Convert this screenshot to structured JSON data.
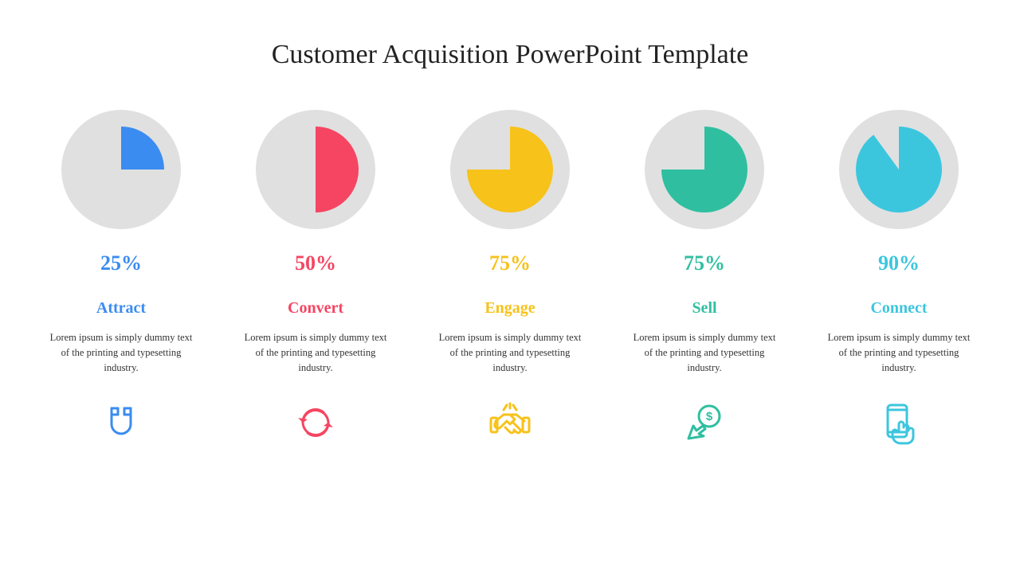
{
  "title": "Customer Acquisition PowerPoint Template",
  "title_fontsize": 34,
  "title_color": "#222222",
  "background_color": "#ffffff",
  "pie_bg_color": "#e0e0e0",
  "pie_outer_radius": 75,
  "pie_inner_radius": 54,
  "columns": [
    {
      "percent": 25,
      "percent_label": "25%",
      "label": "Attract",
      "description": "Lorem ipsum is simply dummy text of the printing and typesetting industry.",
      "color": "#3a8cf0",
      "icon": "magnet"
    },
    {
      "percent": 50,
      "percent_label": "50%",
      "label": "Convert",
      "description": "Lorem ipsum is simply dummy text of the printing and typesetting industry.",
      "color": "#f54562",
      "icon": "cycle"
    },
    {
      "percent": 75,
      "percent_label": "75%",
      "label": "Engage",
      "description": "Lorem ipsum is simply dummy text of the printing and typesetting industry.",
      "color": "#f7c21a",
      "icon": "handshake"
    },
    {
      "percent": 75,
      "percent_label": "75%",
      "label": "Sell",
      "description": "Lorem ipsum is simply dummy text of the printing and typesetting industry.",
      "color": "#2fbfa0",
      "icon": "dollar-cursor"
    },
    {
      "percent": 90,
      "percent_label": "90%",
      "label": "Connect",
      "description": "Lorem ipsum is simply dummy text of the printing and typesetting industry.",
      "color": "#3cc6de",
      "icon": "phone-touch"
    }
  ],
  "typography": {
    "percent_fontsize": 26,
    "label_fontsize": 20,
    "desc_fontsize": 12.5,
    "desc_color": "#333333",
    "font_family": "Georgia, serif"
  },
  "icon_stroke_width": 3,
  "icon_size": 56
}
